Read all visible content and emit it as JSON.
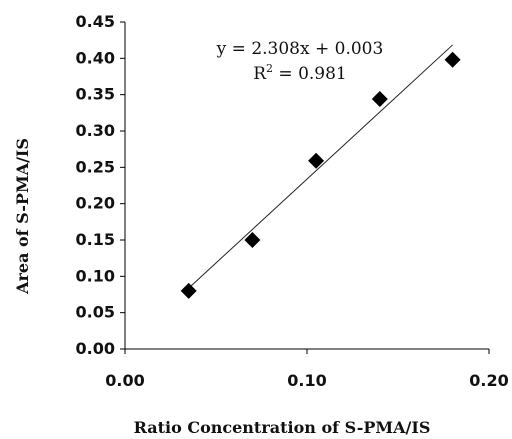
{
  "chart_data": {
    "type": "scatter",
    "title": "",
    "xlabel": "Ratio Concentration of S-PMA/IS",
    "ylabel": "Area of S-PMA/IS",
    "xlim": [
      0.0,
      0.2
    ],
    "ylim": [
      0.0,
      0.45
    ],
    "x_tick_labels": [
      "0.00",
      "0.10",
      "0.20"
    ],
    "y_tick_labels": [
      "0.00",
      "0.05",
      "0.10",
      "0.15",
      "0.20",
      "0.25",
      "0.30",
      "0.35",
      "0.40",
      "0.45"
    ],
    "grid": false,
    "legend": "none",
    "marker": "diamond",
    "marker_color": "#000000",
    "points": [
      {
        "x": 0.035,
        "y": 0.08
      },
      {
        "x": 0.07,
        "y": 0.15
      },
      {
        "x": 0.105,
        "y": 0.259
      },
      {
        "x": 0.14,
        "y": 0.344
      },
      {
        "x": 0.18,
        "y": 0.398
      }
    ],
    "trendline": {
      "slope": 2.308,
      "intercept": 0.003,
      "x_start": 0.035,
      "x_end": 0.18,
      "equation_text": "y = 2.308x + 0.003",
      "r2_prefix": "R",
      "r2_exponent": "2",
      "r2_value_text": " = 0.981"
    }
  }
}
